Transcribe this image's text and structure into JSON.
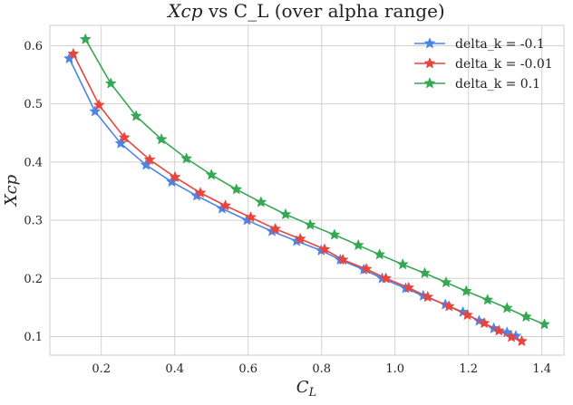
{
  "chart_data": {
    "type": "line",
    "title": "Xcp vs C_L (over alpha range)",
    "xlabel": "C_L",
    "ylabel": "Xcp",
    "xlim": [
      0.06,
      1.46
    ],
    "ylim": [
      0.068,
      0.635
    ],
    "xticks": [
      0.2,
      0.4,
      0.6,
      0.8,
      1.0,
      1.2,
      1.4
    ],
    "xtick_labels": [
      "0.2",
      "0.4",
      "0.6",
      "0.8",
      "1.0",
      "1.2",
      "1.4"
    ],
    "yticks": [
      0.1,
      0.2,
      0.3,
      0.4,
      0.5,
      0.6
    ],
    "ytick_labels": [
      "0.1",
      "0.2",
      "0.3",
      "0.4",
      "0.5",
      "0.6"
    ],
    "grid": true,
    "legend_position": "top-right",
    "series": [
      {
        "name": "delta_k = -0.1",
        "color": "#4a86e8",
        "x": [
          0.113,
          0.183,
          0.253,
          0.322,
          0.392,
          0.46,
          0.529,
          0.597,
          0.665,
          0.732,
          0.799,
          0.851,
          0.915,
          0.965,
          1.029,
          1.077,
          1.137,
          1.185,
          1.229,
          1.269,
          1.305,
          1.329
        ],
        "y": [
          0.578,
          0.487,
          0.432,
          0.395,
          0.366,
          0.342,
          0.32,
          0.3,
          0.281,
          0.264,
          0.248,
          0.232,
          0.215,
          0.2,
          0.183,
          0.17,
          0.155,
          0.142,
          0.127,
          0.114,
          0.107,
          0.101
        ]
      },
      {
        "name": "delta_k = -0.01",
        "color": "#e8453c",
        "x": [
          0.124,
          0.194,
          0.263,
          0.332,
          0.401,
          0.47,
          0.538,
          0.607,
          0.674,
          0.742,
          0.808,
          0.858,
          0.922,
          0.975,
          1.037,
          1.089,
          1.147,
          1.197,
          1.243,
          1.283,
          1.317,
          1.345
        ],
        "y": [
          0.586,
          0.498,
          0.442,
          0.404,
          0.374,
          0.347,
          0.325,
          0.305,
          0.285,
          0.268,
          0.25,
          0.232,
          0.216,
          0.2,
          0.184,
          0.168,
          0.152,
          0.137,
          0.123,
          0.11,
          0.099,
          0.092
        ]
      },
      {
        "name": "delta_k = 0.1",
        "color": "#34a853",
        "x": [
          0.157,
          0.226,
          0.295,
          0.364,
          0.432,
          0.5,
          0.568,
          0.635,
          0.702,
          0.769,
          0.835,
          0.9,
          0.958,
          1.021,
          1.081,
          1.139,
          1.194,
          1.252,
          1.305,
          1.357,
          1.407
        ],
        "y": [
          0.611,
          0.535,
          0.479,
          0.439,
          0.406,
          0.378,
          0.353,
          0.331,
          0.31,
          0.292,
          0.275,
          0.257,
          0.241,
          0.224,
          0.209,
          0.193,
          0.178,
          0.163,
          0.149,
          0.134,
          0.121
        ]
      }
    ]
  }
}
